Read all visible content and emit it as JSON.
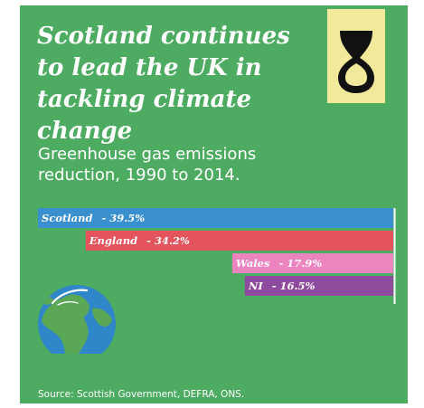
{
  "title": "Scotland continues to lead the UK in tackling climate change",
  "subtitle": "Greenhouse gas emissions reduction, 1990 to 2014.",
  "source": "Source: Scottish Government, DEFRA, ONS.",
  "logo_icon": "snp-loop-emblem-icon",
  "globe_icon": "earth-globe-icon",
  "colors": {
    "background": "#4eac62",
    "logo_background": "#f3e99b",
    "scotland": "#3a8fce",
    "england": "#e5535d",
    "wales": "#ec84c0",
    "ni": "#8e4a9d"
  },
  "chart_data": {
    "type": "bar",
    "orientation": "horizontal",
    "direction": "right-aligned",
    "categories": [
      "Scotland",
      "England",
      "Wales",
      "NI"
    ],
    "values": [
      -39.5,
      -34.2,
      -17.9,
      -16.5
    ],
    "labels": [
      "Scotland - 39.5%",
      "England - 34.2%",
      "Wales - 17.9%",
      "NI - 16.5%"
    ],
    "name_labels": [
      "Scotland",
      "England",
      "Wales",
      "NI"
    ],
    "value_labels": [
      "- 39.5%",
      "- 34.2%",
      "- 17.9%",
      "- 16.5%"
    ],
    "colors": [
      "#3a8fce",
      "#e5535d",
      "#ec84c0",
      "#8e4a9d"
    ],
    "title": "Greenhouse gas emissions reduction, 1990 to 2014.",
    "xlim": [
      -39.5,
      0
    ],
    "grid": false,
    "legend": "none"
  }
}
